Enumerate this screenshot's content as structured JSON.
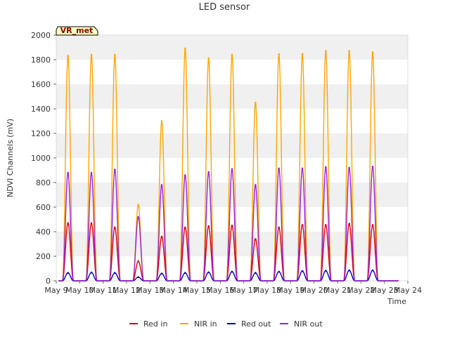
{
  "chart_data": {
    "type": "line",
    "title": "LED sensor",
    "xlabel": "Time",
    "ylabel": "NDVI Channels (mV)",
    "ylim": [
      0,
      2000
    ],
    "yticks": [
      0,
      200,
      400,
      600,
      800,
      1000,
      1200,
      1400,
      1600,
      1800,
      2000
    ],
    "xlim": [
      9,
      24
    ],
    "xticks": [
      {
        "x": 9,
        "label": "May 9"
      },
      {
        "x": 10,
        "label": "May 10"
      },
      {
        "x": 11,
        "label": "May 11"
      },
      {
        "x": 12,
        "label": "May 12"
      },
      {
        "x": 13,
        "label": "May 13"
      },
      {
        "x": 14,
        "label": "May 14"
      },
      {
        "x": 15,
        "label": "May 15"
      },
      {
        "x": 16,
        "label": "May 16"
      },
      {
        "x": 17,
        "label": "May 17"
      },
      {
        "x": 18,
        "label": "May 18"
      },
      {
        "x": 19,
        "label": "May 19"
      },
      {
        "x": 20,
        "label": "May 20"
      },
      {
        "x": 21,
        "label": "May 21"
      },
      {
        "x": 22,
        "label": "May 22"
      },
      {
        "x": 23,
        "label": "May 23"
      },
      {
        "x": 24,
        "label": "May 24"
      }
    ],
    "grid": "horizontal bands",
    "site_tag": "VR_met",
    "legend_position": "bottom",
    "day_peaks": {
      "days": [
        9,
        10,
        11,
        12,
        13,
        14,
        15,
        16,
        17,
        18,
        19,
        20,
        21,
        22,
        23
      ],
      "red_in": [
        470,
        470,
        435,
        160,
        360,
        435,
        445,
        450,
        340,
        435,
        455,
        455,
        465,
        455,
        0
      ],
      "nir_in": [
        1830,
        1840,
        1840,
        620,
        1300,
        1890,
        1810,
        1840,
        1450,
        1845,
        1845,
        1870,
        1870,
        1860,
        0
      ],
      "red_out": [
        65,
        68,
        65,
        30,
        60,
        65,
        70,
        75,
        65,
        75,
        80,
        82,
        85,
        85,
        0
      ],
      "nir_out": [
        880,
        880,
        905,
        520,
        780,
        860,
        885,
        910,
        780,
        915,
        915,
        925,
        920,
        930,
        0
      ]
    },
    "series": [
      {
        "name": "Red in",
        "color": "#dd0000",
        "key": "red_in"
      },
      {
        "name": "NIR in",
        "color": "#ffa500",
        "key": "nir_in"
      },
      {
        "name": "Red out",
        "color": "#0000cc",
        "key": "red_out"
      },
      {
        "name": "NIR out",
        "color": "#9a22dd",
        "key": "nir_out"
      }
    ]
  }
}
